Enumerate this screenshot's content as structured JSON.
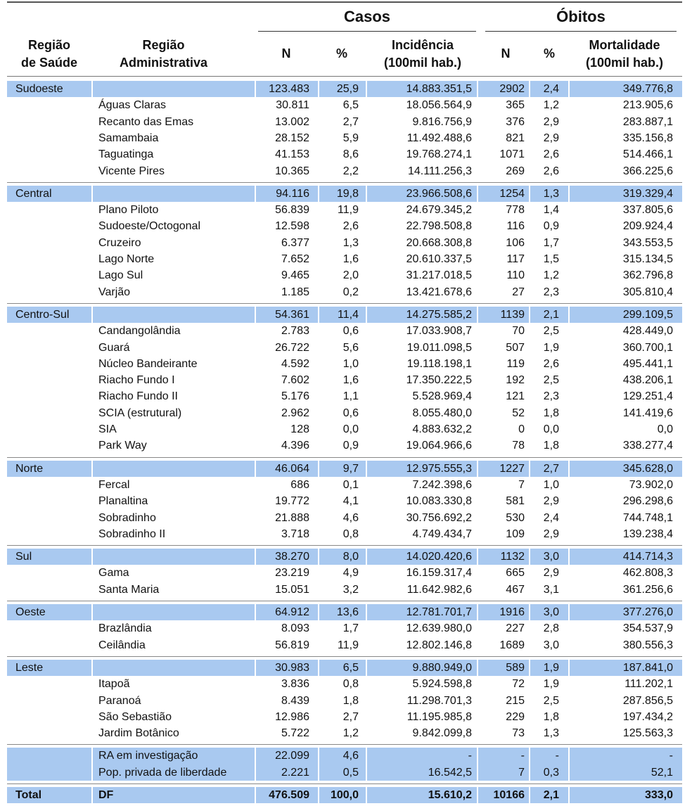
{
  "header": {
    "group_casos": "Casos",
    "group_obitos": "Óbitos",
    "columns": [
      [
        "Região",
        "de Saúde"
      ],
      [
        "Região",
        "Administrativa"
      ],
      [
        "N"
      ],
      [
        "%"
      ],
      [
        "Incidência",
        "(100mil hab.)"
      ],
      [
        "N"
      ],
      [
        "%"
      ],
      [
        "Mortalidade",
        "(100mil hab.)"
      ]
    ]
  },
  "table": {
    "groups": [
      {
        "summary": {
          "region": "Sudoeste",
          "cells": [
            "123.483",
            "25,9",
            "14.883.351,5",
            "2902",
            "2,4",
            "349.776,8"
          ]
        },
        "rows": [
          {
            "name": "Águas Claras",
            "cells": [
              "30.811",
              "6,5",
              "18.056.564,9",
              "365",
              "1,2",
              "213.905,6"
            ]
          },
          {
            "name": "Recanto das Emas",
            "cells": [
              "13.002",
              "2,7",
              "9.816.756,9",
              "376",
              "2,9",
              "283.887,1"
            ]
          },
          {
            "name": "Samambaia",
            "cells": [
              "28.152",
              "5,9",
              "11.492.488,6",
              "821",
              "2,9",
              "335.156,8"
            ]
          },
          {
            "name": "Taguatinga",
            "cells": [
              "41.153",
              "8,6",
              "19.768.274,1",
              "1071",
              "2,6",
              "514.466,1"
            ]
          },
          {
            "name": "Vicente Pires",
            "cells": [
              "10.365",
              "2,2",
              "14.111.256,3",
              "269",
              "2,6",
              "366.225,6"
            ]
          }
        ]
      },
      {
        "summary": {
          "region": "Central",
          "cells": [
            "94.116",
            "19,8",
            "23.966.508,6",
            "1254",
            "1,3",
            "319.329,4"
          ]
        },
        "rows": [
          {
            "name": "Plano Piloto",
            "cells": [
              "56.839",
              "11,9",
              "24.679.345,2",
              "778",
              "1,4",
              "337.805,6"
            ]
          },
          {
            "name": "Sudoeste/Octogonal",
            "cells": [
              "12.598",
              "2,6",
              "22.798.508,8",
              "116",
              "0,9",
              "209.924,4"
            ]
          },
          {
            "name": "Cruzeiro",
            "cells": [
              "6.377",
              "1,3",
              "20.668.308,8",
              "106",
              "1,7",
              "343.553,5"
            ]
          },
          {
            "name": "Lago Norte",
            "cells": [
              "7.652",
              "1,6",
              "20.610.337,5",
              "117",
              "1,5",
              "315.134,5"
            ]
          },
          {
            "name": "Lago Sul",
            "cells": [
              "9.465",
              "2,0",
              "31.217.018,5",
              "110",
              "1,2",
              "362.796,8"
            ]
          },
          {
            "name": "Varjão",
            "cells": [
              "1.185",
              "0,2",
              "13.421.678,6",
              "27",
              "2,3",
              "305.810,4"
            ]
          }
        ]
      },
      {
        "summary": {
          "region": "Centro-Sul",
          "cells": [
            "54.361",
            "11,4",
            "14.275.585,2",
            "1139",
            "2,1",
            "299.109,5"
          ]
        },
        "rows": [
          {
            "name": "Candangolândia",
            "cells": [
              "2.783",
              "0,6",
              "17.033.908,7",
              "70",
              "2,5",
              "428.449,0"
            ]
          },
          {
            "name": "Guará",
            "cells": [
              "26.722",
              "5,6",
              "19.011.098,5",
              "507",
              "1,9",
              "360.700,1"
            ]
          },
          {
            "name": "Núcleo Bandeirante",
            "cells": [
              "4.592",
              "1,0",
              "19.118.198,1",
              "119",
              "2,6",
              "495.441,1"
            ]
          },
          {
            "name": "Riacho Fundo I",
            "cells": [
              "7.602",
              "1,6",
              "17.350.222,5",
              "192",
              "2,5",
              "438.206,1"
            ]
          },
          {
            "name": "Riacho Fundo II",
            "cells": [
              "5.176",
              "1,1",
              "5.528.969,4",
              "121",
              "2,3",
              "129.251,4"
            ]
          },
          {
            "name": "SCIA (estrutural)",
            "cells": [
              "2.962",
              "0,6",
              "8.055.480,0",
              "52",
              "1,8",
              "141.419,6"
            ]
          },
          {
            "name": "SIA",
            "cells": [
              "128",
              "0,0",
              "4.883.632,2",
              "0",
              "0,0",
              "0,0"
            ]
          },
          {
            "name": "Park Way",
            "cells": [
              "4.396",
              "0,9",
              "19.064.966,6",
              "78",
              "1,8",
              "338.277,4"
            ]
          }
        ]
      },
      {
        "summary": {
          "region": "Norte",
          "cells": [
            "46.064",
            "9,7",
            "12.975.555,3",
            "1227",
            "2,7",
            "345.628,0"
          ]
        },
        "rows": [
          {
            "name": "Fercal",
            "cells": [
              "686",
              "0,1",
              "7.242.398,6",
              "7",
              "1,0",
              "73.902,0"
            ]
          },
          {
            "name": "Planaltina",
            "cells": [
              "19.772",
              "4,1",
              "10.083.330,8",
              "581",
              "2,9",
              "296.298,6"
            ]
          },
          {
            "name": "Sobradinho",
            "cells": [
              "21.888",
              "4,6",
              "30.756.692,2",
              "530",
              "2,4",
              "744.748,1"
            ]
          },
          {
            "name": "Sobradinho II",
            "cells": [
              "3.718",
              "0,8",
              "4.749.434,7",
              "109",
              "2,9",
              "139.238,4"
            ]
          }
        ]
      },
      {
        "summary": {
          "region": "Sul",
          "cells": [
            "38.270",
            "8,0",
            "14.020.420,6",
            "1132",
            "3,0",
            "414.714,3"
          ]
        },
        "rows": [
          {
            "name": "Gama",
            "cells": [
              "23.219",
              "4,9",
              "16.159.317,4",
              "665",
              "2,9",
              "462.808,3"
            ]
          },
          {
            "name": "Santa Maria",
            "cells": [
              "15.051",
              "3,2",
              "11.642.982,6",
              "467",
              "3,1",
              "361.256,6"
            ]
          }
        ]
      },
      {
        "summary": {
          "region": "Oeste",
          "cells": [
            "64.912",
            "13,6",
            "12.781.701,7",
            "1916",
            "3,0",
            "377.276,0"
          ]
        },
        "rows": [
          {
            "name": "Brazlândia",
            "cells": [
              "8.093",
              "1,7",
              "12.639.980,0",
              "227",
              "2,8",
              "354.537,9"
            ]
          },
          {
            "name": "Ceilândia",
            "cells": [
              "56.819",
              "11,9",
              "12.802.146,8",
              "1689",
              "3,0",
              "380.556,3"
            ]
          }
        ]
      },
      {
        "summary": {
          "region": "Leste",
          "cells": [
            "30.983",
            "6,5",
            "9.880.949,0",
            "589",
            "1,9",
            "187.841,0"
          ]
        },
        "rows": [
          {
            "name": "Itapoã",
            "cells": [
              "3.836",
              "0,8",
              "5.924.598,8",
              "72",
              "1,9",
              "111.202,1"
            ]
          },
          {
            "name": "Paranoá",
            "cells": [
              "8.439",
              "1,8",
              "11.298.701,3",
              "215",
              "2,5",
              "287.856,5"
            ]
          },
          {
            "name": "São Sebastião",
            "cells": [
              "12.986",
              "2,7",
              "11.195.985,8",
              "229",
              "1,8",
              "197.434,2"
            ]
          },
          {
            "name": "Jardim Botânico",
            "cells": [
              "5.722",
              "1,2",
              "9.842.099,8",
              "73",
              "1,3",
              "125.563,3"
            ]
          }
        ]
      },
      {
        "highlight": true,
        "rows": [
          {
            "name": "RA em investigação",
            "cells": [
              "22.099",
              "4,6",
              "-",
              "-",
              "-",
              "-"
            ]
          },
          {
            "name": "Pop. privada de liberdade",
            "cells": [
              "2.221",
              "0,5",
              "16.542,5",
              "7",
              "0,3",
              "52,1"
            ]
          }
        ]
      }
    ],
    "total": {
      "region": "Total",
      "name": "DF",
      "cells": [
        "476.509",
        "100,0",
        "15.610,2",
        "10166",
        "2,1",
        "333,0"
      ]
    }
  }
}
